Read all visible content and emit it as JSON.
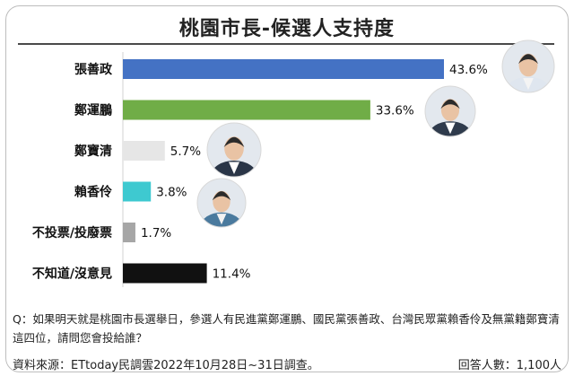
{
  "chart_data": {
    "type": "bar",
    "orientation": "horizontal",
    "title": "桃園市長-候選人支持度",
    "categories": [
      "張善政",
      "鄭運鵬",
      "鄭寶清",
      "賴香伶",
      "不投票/投廢票",
      "不知道/沒意見"
    ],
    "values": [
      43.6,
      33.6,
      5.7,
      3.8,
      1.7,
      11.4
    ],
    "value_labels": [
      "43.6%",
      "33.6%",
      "5.7%",
      "3.8%",
      "1.7%",
      "11.4%"
    ],
    "colors": [
      "#4472c4",
      "#70ad47",
      "#e6e6e6",
      "#3ec9d0",
      "#a6a6a6",
      "#111111"
    ],
    "xlabel": "",
    "ylabel": "",
    "xlim": [
      0,
      50
    ],
    "unit": "%",
    "grid": false,
    "legend": "none"
  },
  "question": "Q：如果明天就是桃園市長選舉日，參選人有民進黨鄭運鵬、國民黨張善政、台灣民眾黨賴香伶及無黨籍鄭寶清這四位，請問您會投給誰？",
  "source": "資料來源：ETtoday民調雲2022年10月28日~31日調查。",
  "respondents": "回答人數：1,100人"
}
